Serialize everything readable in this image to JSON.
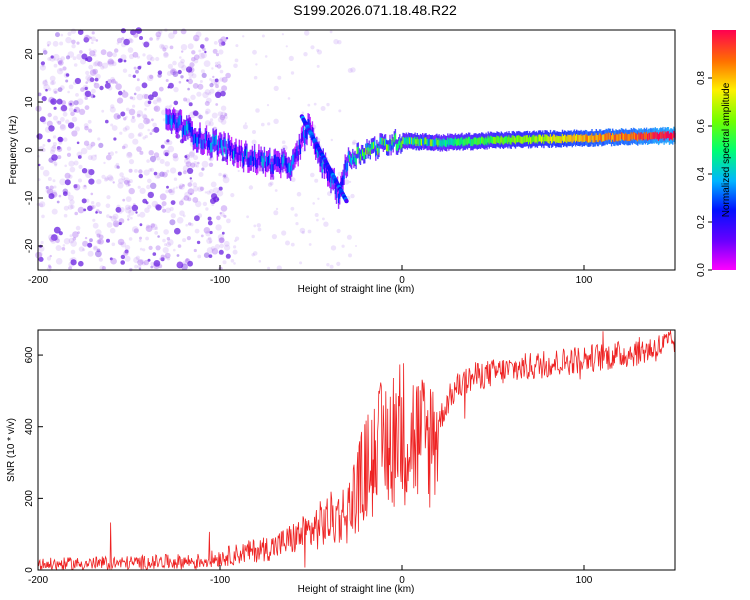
{
  "title": "S199.2026.071.18.48.R22",
  "chart_data": [
    {
      "type": "heatmap",
      "title": "S199.2026.071.18.48.R22",
      "xlabel": "Height of straight line (km)",
      "ylabel": "Frequency (Hz)",
      "xlim": [
        -200,
        150
      ],
      "ylim": [
        -25,
        25
      ],
      "xticks": [
        "-200",
        "-100",
        "0",
        "100"
      ],
      "yticks": [
        "-20",
        "-10",
        "0",
        "10",
        "20"
      ],
      "colorbar": {
        "label": "Normalized spectral amplitude",
        "range": [
          0,
          1
        ],
        "ticks": [
          "0.0",
          "0.2",
          "0.4",
          "0.6",
          "0.8"
        ]
      },
      "ridge": [
        {
          "x": -125,
          "y": 6
        },
        {
          "x": -110,
          "y": 2
        },
        {
          "x": -100,
          "y": 1
        },
        {
          "x": -90,
          "y": -1
        },
        {
          "x": -80,
          "y": -2
        },
        {
          "x": -70,
          "y": -3
        },
        {
          "x": -60,
          "y": -3
        },
        {
          "x": -52,
          "y": 5
        },
        {
          "x": -45,
          "y": -2
        },
        {
          "x": -35,
          "y": -9
        },
        {
          "x": -30,
          "y": -2
        },
        {
          "x": -20,
          "y": 0
        },
        {
          "x": -10,
          "y": 1
        },
        {
          "x": 0,
          "y": 2
        },
        {
          "x": 20,
          "y": 1.5
        },
        {
          "x": 50,
          "y": 2
        },
        {
          "x": 100,
          "y": 2.5
        },
        {
          "x": 150,
          "y": 3
        }
      ]
    },
    {
      "type": "line",
      "xlabel": "Height of straight line (km)",
      "ylabel": "SNR (10 * v/v)",
      "xlim": [
        -200,
        150
      ],
      "ylim": [
        0,
        670
      ],
      "xticks": [
        "-200",
        "-100",
        "0",
        "100"
      ],
      "yticks": [
        "0",
        "200",
        "400",
        "600"
      ],
      "color": "#ee2222",
      "series": [
        {
          "name": "SNR",
          "x": [
            -200,
            -150,
            -110,
            -90,
            -70,
            -50,
            -40,
            -30,
            -25,
            -20,
            -15,
            -10,
            -5,
            0,
            5,
            10,
            15,
            20,
            25,
            30,
            40,
            50,
            60,
            80,
            100,
            120,
            140,
            150
          ],
          "y": [
            15,
            20,
            25,
            45,
            65,
            110,
            140,
            160,
            220,
            280,
            320,
            350,
            380,
            390,
            380,
            360,
            360,
            410,
            470,
            510,
            540,
            550,
            560,
            575,
            590,
            600,
            620,
            640
          ]
        }
      ]
    }
  ]
}
